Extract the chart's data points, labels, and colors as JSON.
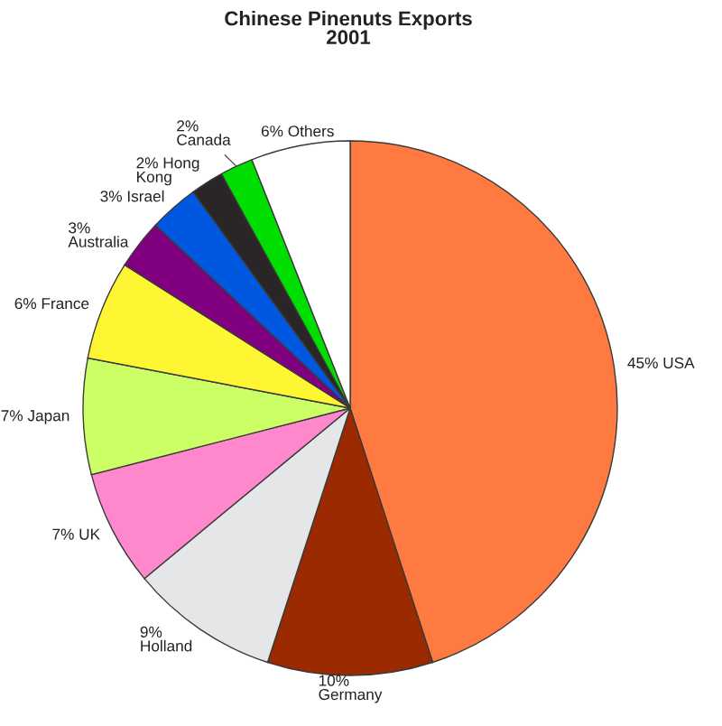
{
  "chart_data": {
    "type": "pie",
    "title": "Chinese Pinenuts Exports\n2001",
    "categories": [
      "45% USA",
      "10%\nGermany",
      "9%\nHolland",
      "7% UK",
      "7% Japan",
      "6% France",
      "3%\nAustralia",
      "3% Israel",
      "2% Hong\nKong",
      "2%\nCanada",
      "6% Others"
    ],
    "values": [
      45,
      10,
      9,
      7,
      7,
      6,
      3,
      3,
      2,
      2,
      6
    ],
    "colors": [
      "#ff7a40",
      "#9c2a00",
      "#e4e6e8",
      "#ff88cc",
      "#ccff66",
      "#fff633",
      "#800080",
      "#0058e0",
      "#2a2628",
      "#00dd00",
      "#ffffff"
    ]
  }
}
